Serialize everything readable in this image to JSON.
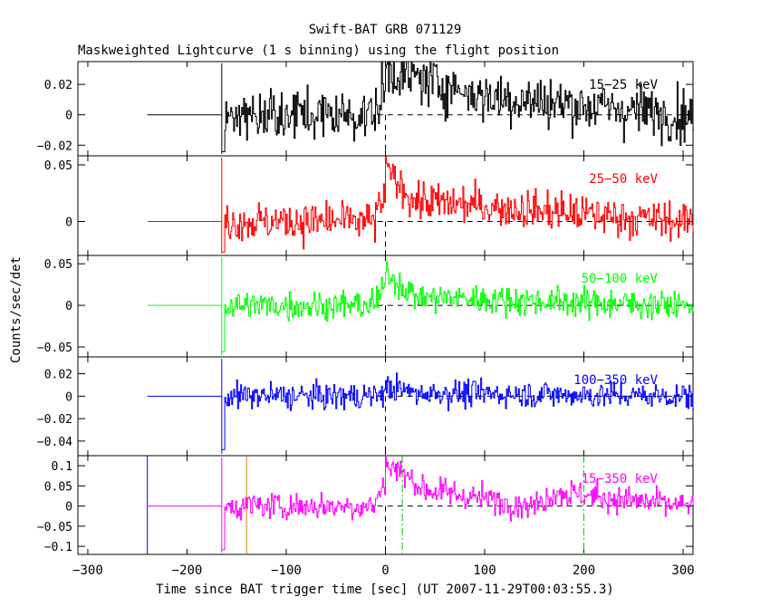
{
  "title": "Swift-BAT GRB 071129",
  "subtitle": "Maskweighted Lightcurve (1 s binning) using the flight position",
  "ylabel": "Counts/sec/det",
  "xlabel": "Time since BAT trigger time [sec] (UT 2007-11-29T00:03:55.3)",
  "chart_data": [
    {
      "type": "line",
      "name": "15-25 keV",
      "label": "15−25 keV",
      "color": "#000000",
      "xlim": [
        -310,
        310
      ],
      "ylim": [
        -0.027,
        0.035
      ],
      "yticks": [
        -0.02,
        0,
        0.02
      ],
      "yticklabels": [
        "−0.02",
        "0",
        "0.02"
      ],
      "x_start": -165,
      "x_end": 310,
      "pretrigger": {
        "x": [
          -240,
          -165
        ],
        "y": 0
      },
      "noise_sigma": 0.0085,
      "peak": 0.008,
      "decay": 80,
      "features": [
        {
          "time": 0,
          "value": 0.03
        },
        {
          "time": 100,
          "value": 0.012
        },
        {
          "time": 300,
          "value": 0.0
        }
      ]
    },
    {
      "type": "line",
      "name": "25-50 keV",
      "label": "25−50 keV",
      "color": "#ff0000",
      "xlim": [
        -310,
        310
      ],
      "ylim": [
        -0.03,
        0.058
      ],
      "yticks": [
        0,
        0.05
      ],
      "yticklabels": [
        "0",
        "0.05"
      ],
      "x_start": -165,
      "x_end": 310,
      "pretrigger": {
        "x": [
          -240,
          -165
        ],
        "y": 0
      },
      "noise_sigma": 0.0085,
      "peak": 0.042,
      "decay": 25,
      "features": [
        {
          "time": 0,
          "value": 0.045
        },
        {
          "time": 30,
          "value": 0.018
        },
        {
          "time": 300,
          "value": 0.0
        }
      ]
    },
    {
      "type": "line",
      "name": "50-100 keV",
      "label": "50−100 keV",
      "color": "#00ff00",
      "xlim": [
        -310,
        310
      ],
      "ylim": [
        -0.062,
        0.06
      ],
      "yticks": [
        -0.05,
        0,
        0.05
      ],
      "yticklabels": [
        "−0.05",
        "0",
        "0.05"
      ],
      "x_start": -165,
      "x_end": 310,
      "pretrigger": {
        "x": [
          -240,
          -165
        ],
        "y": 0
      },
      "noise_sigma": 0.0085,
      "peak": 0.035,
      "decay": 18,
      "features": [
        {
          "time": 0,
          "value": 0.04
        },
        {
          "time": 30,
          "value": 0.01
        },
        {
          "time": 300,
          "value": 0.0
        }
      ]
    },
    {
      "type": "line",
      "name": "100-350 keV",
      "label": "100−350 keV",
      "color": "#0000ff",
      "xlim": [
        -310,
        310
      ],
      "ylim": [
        -0.053,
        0.035
      ],
      "yticks": [
        -0.04,
        -0.02,
        0,
        0.02
      ],
      "yticklabels": [
        "−0.04",
        "−0.02",
        "0",
        "0.02"
      ],
      "x_start": -165,
      "x_end": 310,
      "pretrigger": {
        "x": [
          -240,
          -165
        ],
        "y": 0
      },
      "noise_sigma": 0.0058,
      "peak": 0.005,
      "decay": 30,
      "features": [
        {
          "time": 0,
          "value": 0.008
        },
        {
          "time": 30,
          "value": 0.003
        },
        {
          "time": 300,
          "value": 0.0
        }
      ]
    },
    {
      "type": "line",
      "name": "15-350 keV",
      "label": "15−350 keV",
      "color": "#ff00ff",
      "xlim": [
        -310,
        310
      ],
      "ylim": [
        -0.12,
        0.125
      ],
      "yticks": [
        -0.1,
        -0.05,
        0,
        0.05,
        0.1
      ],
      "yticklabels": [
        "−0.1",
        "−0.05",
        "0",
        "0.05",
        "0.1"
      ],
      "x_start": -165,
      "x_end": 310,
      "pretrigger": {
        "x": [
          -240,
          -165
        ],
        "y": 0
      },
      "noise_sigma": 0.017,
      "peak": 0.085,
      "decay": 35,
      "features": [
        {
          "time": 0,
          "value": 0.11
        },
        {
          "time": 40,
          "value": 0.04
        },
        {
          "time": 150,
          "value": 0.0
        },
        {
          "time": 170,
          "value": 0.035
        },
        {
          "time": 300,
          "value": 0.0
        }
      ],
      "markers": [
        {
          "x": -240,
          "color": "#0000ff",
          "style": "solid"
        },
        {
          "x": -140,
          "color": "#cc8800",
          "style": "solid"
        },
        {
          "x": 17,
          "color": "#00cc00",
          "style": "dashdot"
        },
        {
          "x": 200,
          "color": "#00cc00",
          "style": "dashdot"
        }
      ]
    }
  ],
  "xaxis": {
    "ticks": [
      -300,
      -200,
      -100,
      0,
      100,
      200,
      300
    ],
    "ticklabels": [
      "−300",
      "−200",
      "−100",
      "0",
      "100",
      "200",
      "300"
    ]
  },
  "trigger_line": {
    "x": 0,
    "style": "dashed",
    "color": "#000000"
  }
}
